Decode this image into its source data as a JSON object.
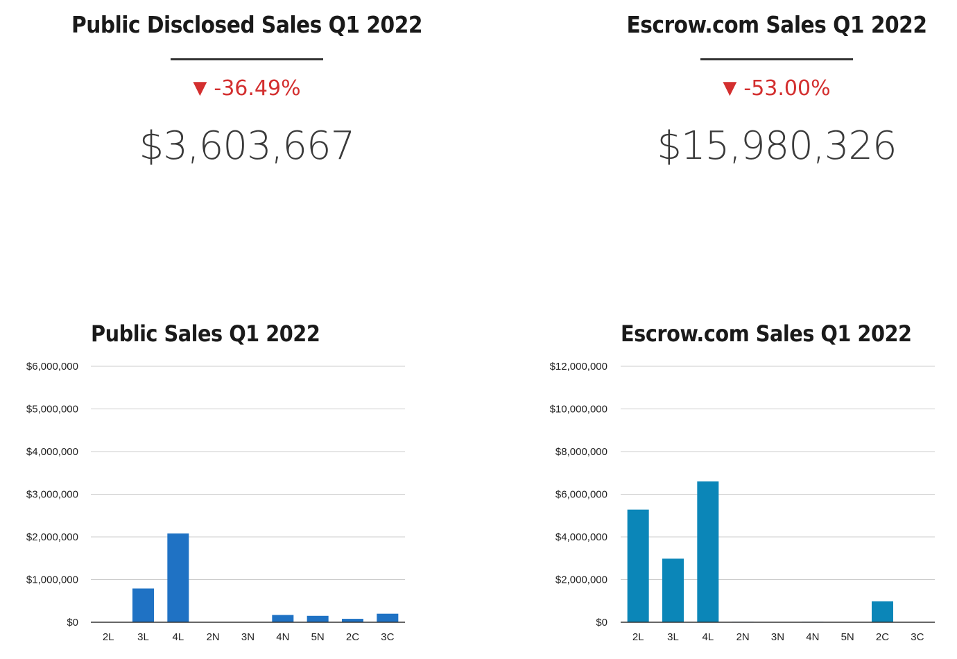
{
  "kpis": [
    {
      "title": "Public Disclosed Sales Q1 2022",
      "change_arrow": "▼",
      "change": "-36.49%",
      "value": "$3,603,667"
    },
    {
      "title": "Escrow.com Sales Q1 2022",
      "change_arrow": "▼",
      "change": "-53.00%",
      "value": "$15,980,326"
    }
  ],
  "colors": {
    "negative": "#d32f2f",
    "public_bar": "#1f72c4",
    "escrow_bar": "#0b86b8",
    "gridline": "#cccccc",
    "axis": "#333333"
  },
  "chart_data": [
    {
      "type": "bar",
      "title": "Public Sales Q1 2022",
      "xlabel": "",
      "ylabel": "",
      "categories": [
        "2L",
        "3L",
        "4L",
        "2N",
        "3N",
        "4N",
        "5N",
        "2C",
        "3C"
      ],
      "values": [
        5000,
        790000,
        2080000,
        5000,
        5000,
        170000,
        150000,
        80000,
        200000
      ],
      "ylim": [
        0,
        6000000
      ],
      "yticks": [
        0,
        1000000,
        2000000,
        3000000,
        4000000,
        5000000,
        6000000
      ],
      "ytick_labels": [
        "$0",
        "$1,000,000",
        "$2,000,000",
        "$3,000,000",
        "$4,000,000",
        "$5,000,000",
        "$6,000,000"
      ],
      "grid": true,
      "legend": "none"
    },
    {
      "type": "bar",
      "title": "Escrow.com Sales Q1 2022",
      "xlabel": "",
      "ylabel": "",
      "categories": [
        "2L",
        "3L",
        "4L",
        "2N",
        "3N",
        "4N",
        "5N",
        "2C",
        "3C"
      ],
      "values": [
        5280000,
        2980000,
        6600000,
        20000,
        10000,
        20000,
        0,
        980000,
        0
      ],
      "ylim": [
        0,
        12000000
      ],
      "yticks": [
        0,
        2000000,
        4000000,
        6000000,
        8000000,
        10000000,
        12000000
      ],
      "ytick_labels": [
        "$0",
        "$2,000,000",
        "$4,000,000",
        "$6,000,000",
        "$8,000,000",
        "$10,000,000",
        "$12,000,000"
      ],
      "grid": true,
      "legend": "none"
    }
  ]
}
